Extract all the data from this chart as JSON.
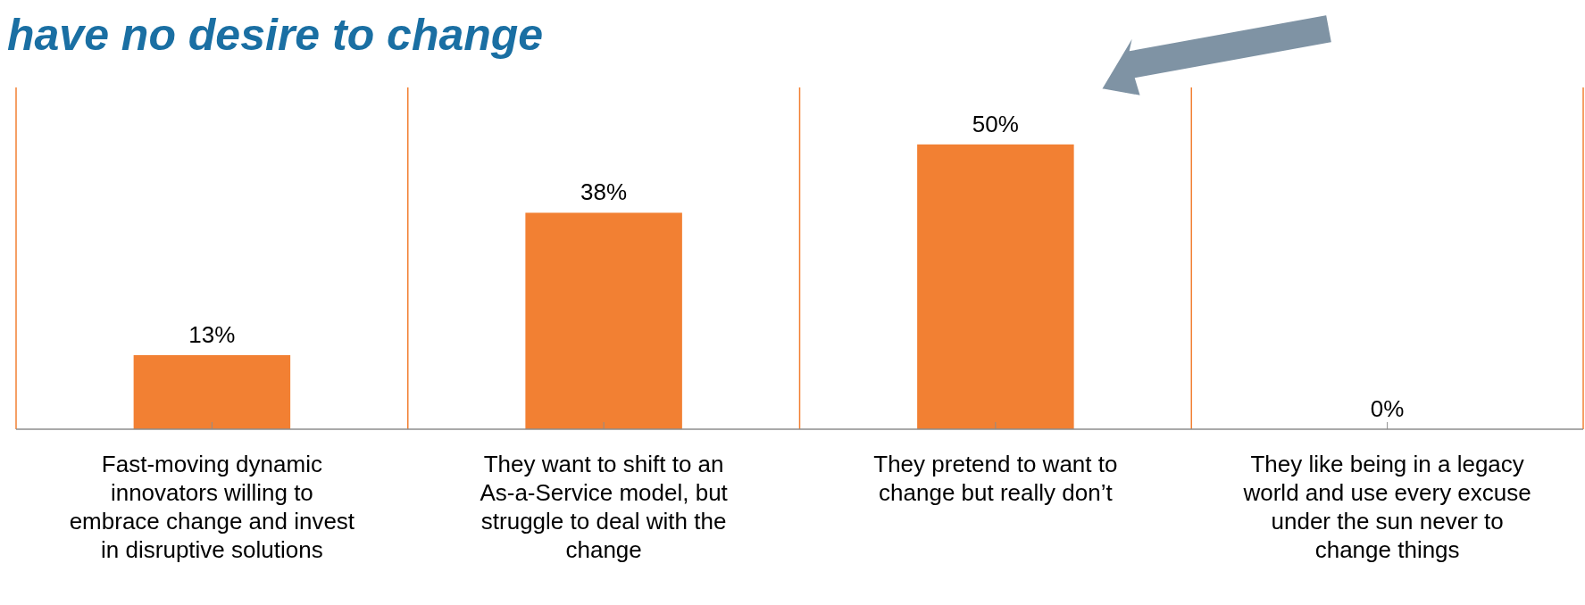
{
  "chart_data": {
    "type": "bar",
    "title": "have no desire to change",
    "categories": [
      "Fast-moving dynamic innovators willing to embrace change and invest in disruptive solutions",
      "They want to shift to an As-a-Service model, but struggle to deal with the change",
      "They pretend to want to change but really don’t",
      "They like being in a legacy world and use every excuse under the sun never to change things"
    ],
    "values": [
      13,
      38,
      50,
      0
    ],
    "value_labels": [
      "13%",
      "38%",
      "50%",
      "0%"
    ],
    "color": "#f28033",
    "grid": "x"
  }
}
